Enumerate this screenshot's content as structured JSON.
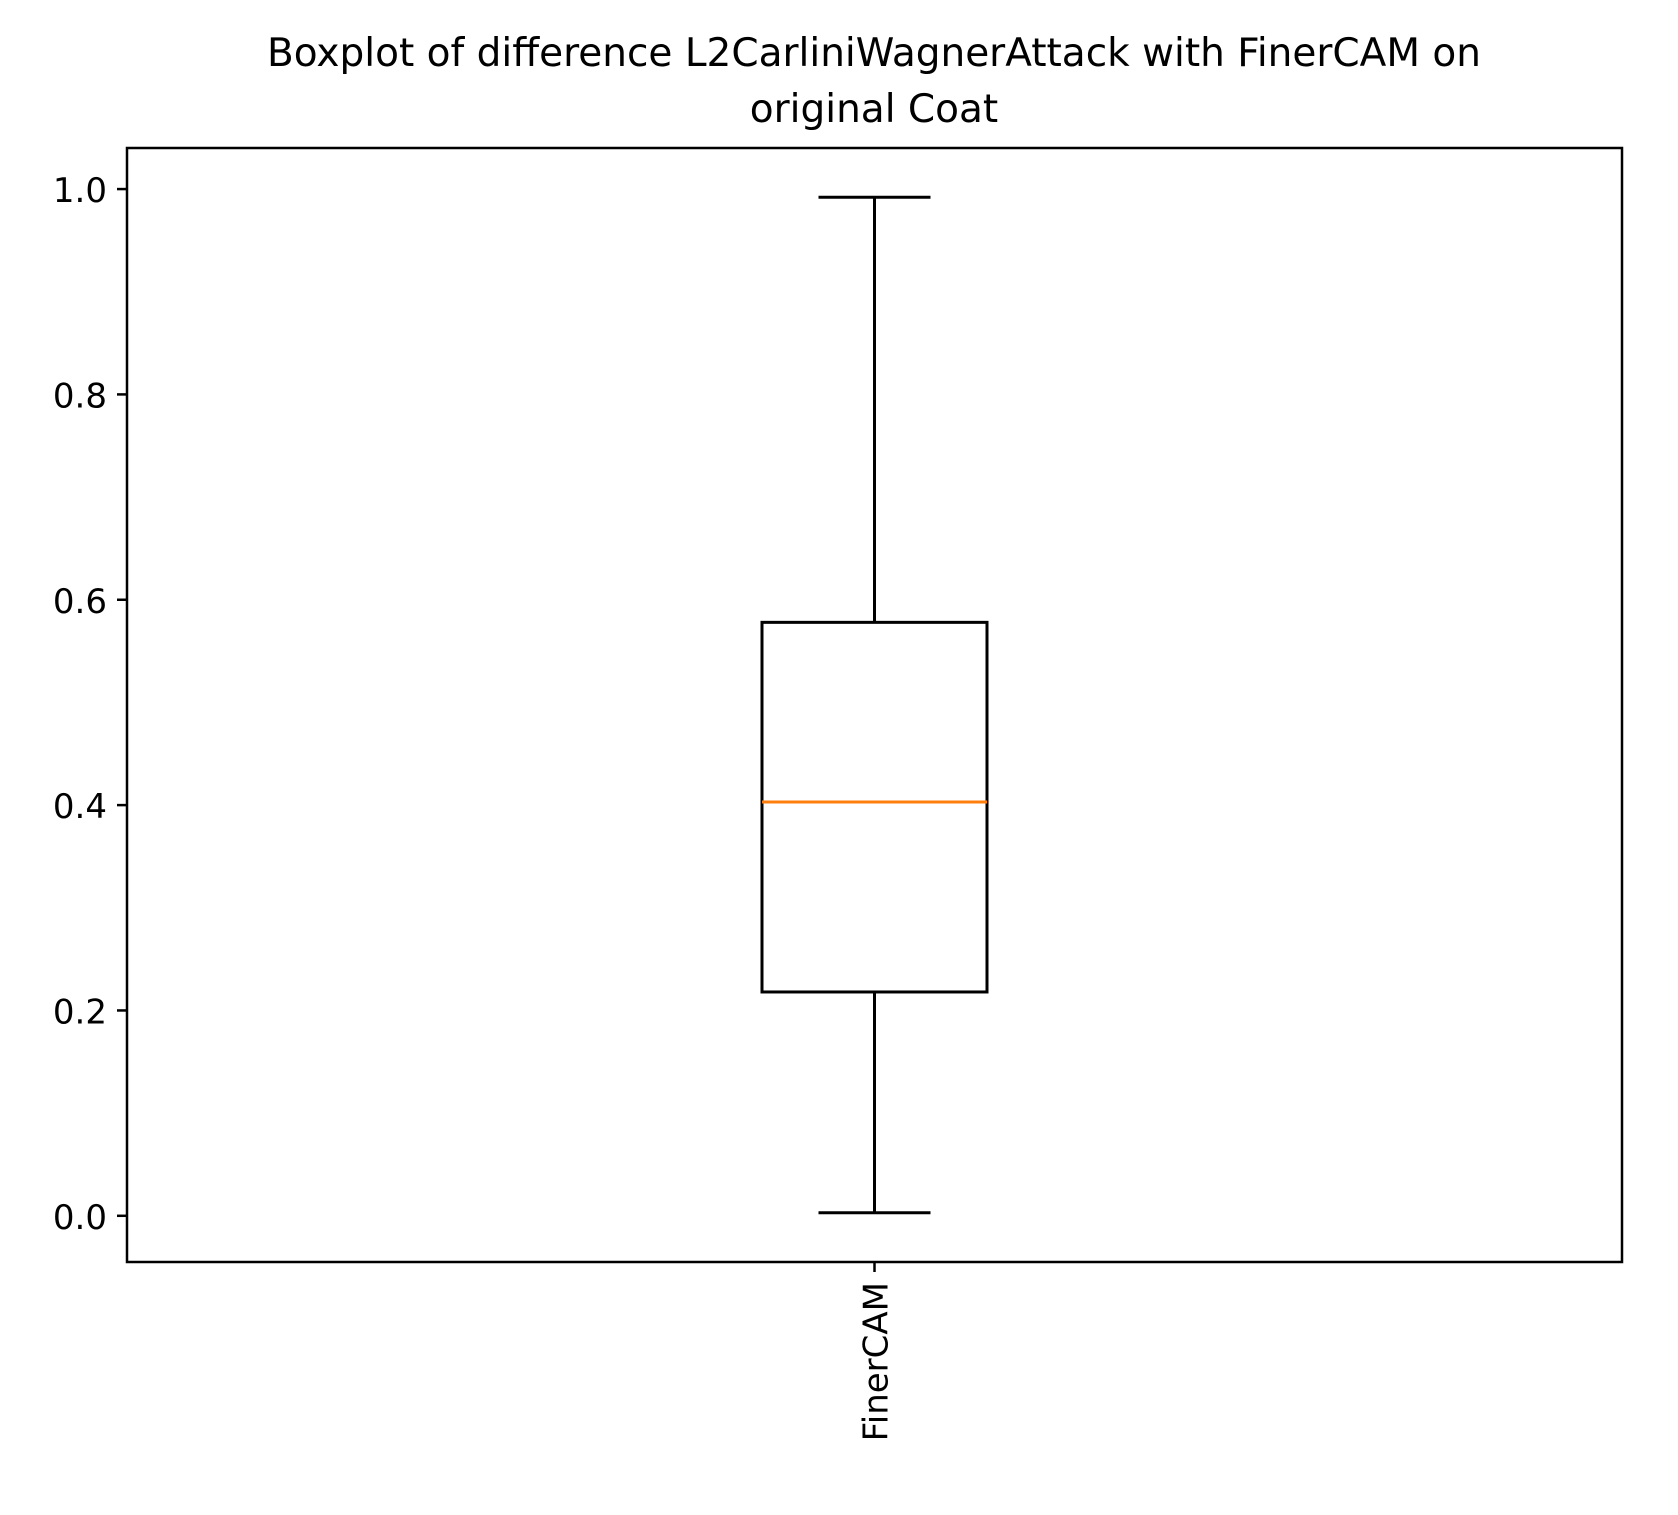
{
  "chart_data": {
    "type": "boxplot",
    "title": "Boxplot of difference L2CarliniWagnerAttack with FinerCAM on\noriginal Coat",
    "xlabel": "",
    "ylabel": "",
    "ylim": [
      -0.045,
      1.04
    ],
    "yticks": [
      0.0,
      0.2,
      0.4,
      0.6,
      0.8,
      1.0
    ],
    "ytick_labels": [
      "0.0",
      "0.2",
      "0.4",
      "0.6",
      "0.8",
      "1.0"
    ],
    "grid": false,
    "categories": [
      "FinerCAM"
    ],
    "boxes": [
      {
        "label": "FinerCAM",
        "whisker_low": 0.003,
        "q1": 0.218,
        "median": 0.403,
        "q3": 0.578,
        "whisker_high": 0.992
      }
    ],
    "colors": {
      "box": "#000000",
      "median": "#ff7f0e",
      "axes": "#000000"
    }
  }
}
